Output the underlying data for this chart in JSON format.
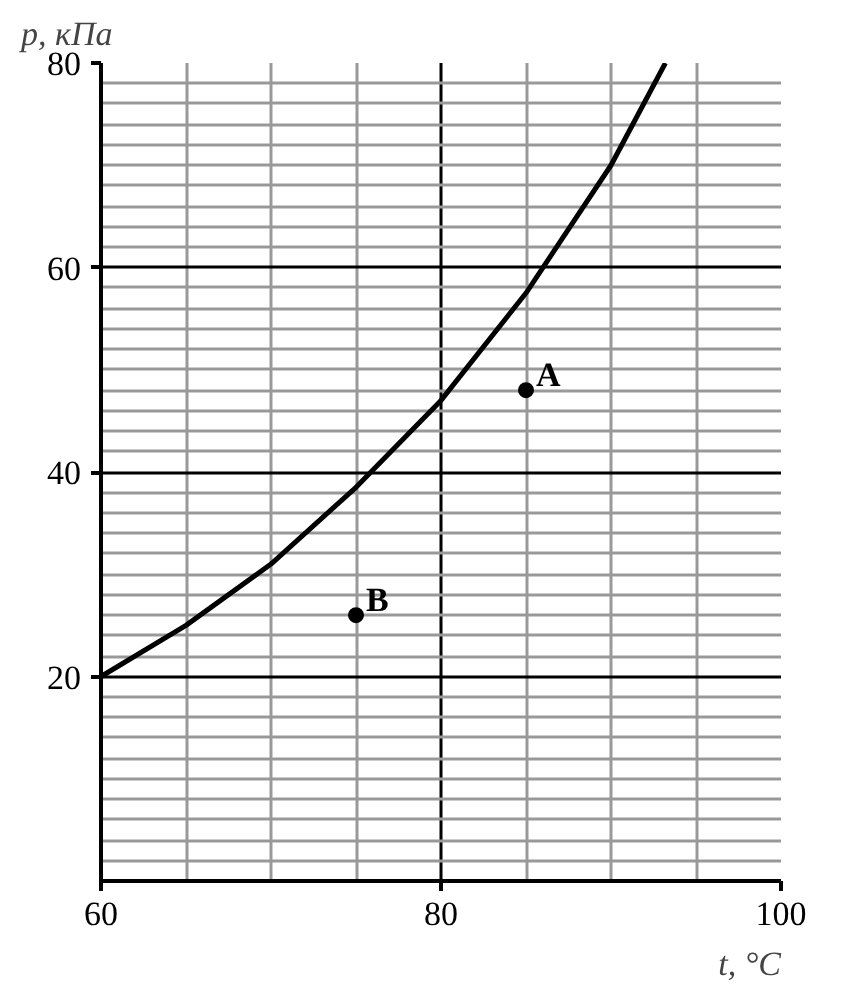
{
  "chart_data": {
    "type": "line",
    "xlabel": "t, °C",
    "ylabel": "p, кПа",
    "xlim": [
      60,
      100
    ],
    "ylim": [
      0,
      80
    ],
    "xticks": [
      60,
      80,
      100
    ],
    "yticks": [
      20,
      40,
      60,
      80
    ],
    "grid": true,
    "series": [
      {
        "color": "#000000",
        "x": [
          60,
          65,
          70,
          75,
          80,
          85,
          90,
          93.2
        ],
        "values": [
          20,
          25,
          31,
          38.5,
          47,
          57.5,
          70,
          80
        ]
      },
      {
        "name": "A",
        "type": "scatter",
        "marker": "circle",
        "color": "#000000",
        "x": [
          85
        ],
        "values": [
          48
        ]
      },
      {
        "name": "B",
        "type": "scatter",
        "marker": "circle",
        "color": "#000000",
        "x": [
          75
        ],
        "values": [
          26
        ]
      }
    ]
  }
}
